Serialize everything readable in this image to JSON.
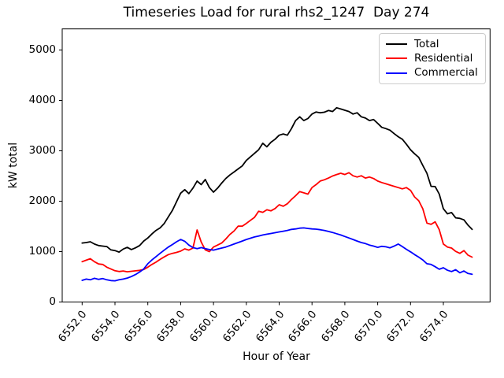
{
  "title": "Timeseries Load for rural rhs2_1247  Day 274",
  "chart_data": {
    "type": "line",
    "title": "Timeseries Load for rural rhs2_1247  Day 274",
    "xlabel": "Hour of Year",
    "ylabel": "kW total",
    "grid": false,
    "legend_position": "upper right",
    "xlim": [
      6550.8,
      6576.8
    ],
    "ylim": [
      0,
      5420
    ],
    "x_tick_values": [
      6552,
      6554,
      6556,
      6558,
      6560,
      6562,
      6564,
      6566,
      6568,
      6570,
      6572,
      6574
    ],
    "x_tick_labels": [
      "6552.0",
      "6554.0",
      "6556.0",
      "6558.0",
      "6560.0",
      "6562.0",
      "6564.0",
      "6566.0",
      "6568.0",
      "6570.0",
      "6572.0",
      "6574.0"
    ],
    "y_tick_values": [
      0,
      1000,
      2000,
      3000,
      4000,
      5000
    ],
    "y_tick_labels": [
      "0",
      "1000",
      "2000",
      "3000",
      "4000",
      "5000"
    ],
    "x": [
      6552.0,
      6552.25,
      6552.5,
      6552.75,
      6553.0,
      6553.25,
      6553.5,
      6553.75,
      6554.0,
      6554.25,
      6554.5,
      6554.75,
      6555.0,
      6555.25,
      6555.5,
      6555.75,
      6556.0,
      6556.25,
      6556.5,
      6556.75,
      6557.0,
      6557.25,
      6557.5,
      6557.75,
      6558.0,
      6558.25,
      6558.5,
      6558.75,
      6559.0,
      6559.25,
      6559.5,
      6559.75,
      6560.0,
      6560.25,
      6560.5,
      6560.75,
      6561.0,
      6561.25,
      6561.5,
      6561.75,
      6562.0,
      6562.25,
      6562.5,
      6562.75,
      6563.0,
      6563.25,
      6563.5,
      6563.75,
      6564.0,
      6564.25,
      6564.5,
      6564.75,
      6565.0,
      6565.25,
      6565.5,
      6565.75,
      6566.0,
      6566.25,
      6566.5,
      6566.75,
      6567.0,
      6567.25,
      6567.5,
      6567.75,
      6568.0,
      6568.25,
      6568.5,
      6568.75,
      6569.0,
      6569.25,
      6569.5,
      6569.75,
      6570.0,
      6570.25,
      6570.5,
      6570.75,
      6571.0,
      6571.25,
      6571.5,
      6571.75,
      6572.0,
      6572.25,
      6572.5,
      6572.75,
      6573.0,
      6573.25,
      6573.5,
      6573.75,
      6574.0,
      6574.25,
      6574.5,
      6574.75,
      6575.0,
      6575.25,
      6575.5,
      6575.75
    ],
    "series": [
      {
        "name": "Total",
        "color": "#000000",
        "values": [
          1170,
          1180,
          1195,
          1150,
          1120,
          1110,
          1100,
          1035,
          1020,
          990,
          1050,
          1085,
          1040,
          1075,
          1120,
          1210,
          1270,
          1350,
          1420,
          1470,
          1560,
          1690,
          1820,
          1990,
          2160,
          2230,
          2150,
          2260,
          2400,
          2330,
          2430,
          2270,
          2180,
          2260,
          2360,
          2450,
          2520,
          2580,
          2640,
          2700,
          2810,
          2880,
          2950,
          3020,
          3150,
          3080,
          3170,
          3230,
          3310,
          3335,
          3310,
          3440,
          3600,
          3675,
          3600,
          3640,
          3730,
          3770,
          3755,
          3765,
          3800,
          3780,
          3855,
          3830,
          3805,
          3780,
          3730,
          3755,
          3675,
          3650,
          3600,
          3620,
          3545,
          3465,
          3440,
          3410,
          3340,
          3280,
          3230,
          3130,
          3020,
          2940,
          2870,
          2710,
          2555,
          2295,
          2290,
          2140,
          1850,
          1750,
          1775,
          1670,
          1660,
          1630,
          1525,
          1440
        ]
      },
      {
        "name": "Residential",
        "color": "#ff0000",
        "values": [
          800,
          830,
          860,
          800,
          755,
          745,
          690,
          655,
          620,
          605,
          615,
          600,
          610,
          618,
          628,
          645,
          690,
          745,
          790,
          845,
          895,
          940,
          965,
          985,
          1010,
          1055,
          1030,
          1070,
          1430,
          1190,
          1035,
          1000,
          1090,
          1130,
          1170,
          1250,
          1340,
          1410,
          1505,
          1505,
          1560,
          1620,
          1680,
          1800,
          1780,
          1830,
          1810,
          1855,
          1930,
          1900,
          1950,
          2035,
          2110,
          2190,
          2165,
          2140,
          2270,
          2330,
          2400,
          2425,
          2460,
          2500,
          2530,
          2555,
          2530,
          2565,
          2505,
          2480,
          2505,
          2460,
          2480,
          2450,
          2400,
          2370,
          2345,
          2320,
          2295,
          2270,
          2245,
          2270,
          2215,
          2085,
          2010,
          1850,
          1565,
          1540,
          1590,
          1435,
          1150,
          1090,
          1070,
          1005,
          965,
          1020,
          930,
          890
        ]
      },
      {
        "name": "Commercial",
        "color": "#0000ff",
        "values": [
          430,
          455,
          440,
          470,
          450,
          465,
          440,
          425,
          420,
          440,
          455,
          475,
          505,
          545,
          595,
          655,
          760,
          835,
          900,
          965,
          1030,
          1090,
          1140,
          1195,
          1240,
          1205,
          1130,
          1080,
          1060,
          1080,
          1060,
          1040,
          1030,
          1050,
          1070,
          1090,
          1120,
          1150,
          1180,
          1210,
          1240,
          1265,
          1290,
          1310,
          1330,
          1345,
          1360,
          1375,
          1390,
          1405,
          1420,
          1440,
          1450,
          1465,
          1470,
          1460,
          1450,
          1445,
          1435,
          1420,
          1400,
          1380,
          1355,
          1330,
          1300,
          1270,
          1240,
          1210,
          1180,
          1160,
          1130,
          1110,
          1085,
          1105,
          1095,
          1075,
          1110,
          1150,
          1100,
          1045,
          995,
          940,
          890,
          835,
          760,
          745,
          700,
          650,
          680,
          630,
          605,
          640,
          580,
          615,
          565,
          550
        ]
      }
    ]
  },
  "legend": {
    "items": [
      {
        "label": "Total",
        "color": "#000000"
      },
      {
        "label": "Residential",
        "color": "#ff0000"
      },
      {
        "label": "Commercial",
        "color": "#0000ff"
      }
    ]
  }
}
